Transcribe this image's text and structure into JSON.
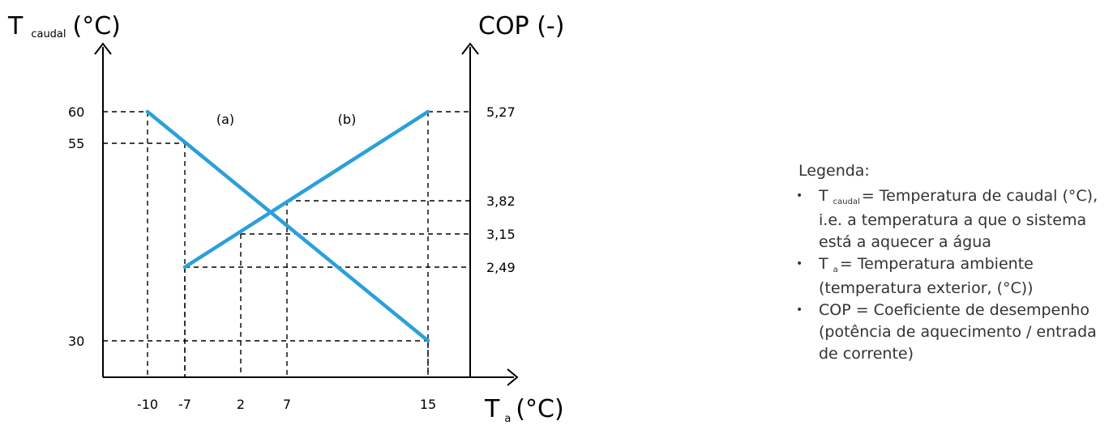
{
  "chart_data": {
    "type": "line",
    "y_left_label": {
      "symbol": "T",
      "subscript": "caudal",
      "unit": "(°C)"
    },
    "y_right_label": "COP (-)",
    "x_label": {
      "symbol": "T",
      "subscript": "a",
      "unit": "(°C)"
    },
    "x_ticks": [
      "-10",
      "-7",
      "2",
      "7",
      "15"
    ],
    "y_left_ticks": [
      "60",
      "55",
      "30"
    ],
    "y_right_ticks": [
      "5,27",
      "3,82",
      "3,15",
      "2,49"
    ],
    "annotations": [
      "(a)",
      "(b)"
    ],
    "series": [
      {
        "key": "a",
        "axis": "left",
        "x": [
          -10,
          15
        ],
        "y": [
          60,
          30
        ]
      },
      {
        "key": "b",
        "axis": "right",
        "x": [
          -7,
          15
        ],
        "y": [
          2.49,
          5.27
        ]
      }
    ],
    "reference_points": {
      "left": [
        {
          "x": -10,
          "y": 60
        },
        {
          "x": -7,
          "y": 55
        },
        {
          "x": 15,
          "y": 30
        }
      ],
      "right": [
        {
          "x": -7,
          "y": 2.49
        },
        {
          "x": 2,
          "y": 3.15
        },
        {
          "x": 7,
          "y": 3.82
        },
        {
          "x": 15,
          "y": 5.27
        }
      ]
    },
    "colors": {
      "line": "#2aa0da",
      "axis": "#000000",
      "guide": "#000000"
    }
  },
  "legend": {
    "title": "Legenda:",
    "items": [
      {
        "symbol": "T",
        "subscript": "caudal",
        "text": "= Temperatura de caudal (°C), i.e. a temperatura a que o sistema está a aquecer a água"
      },
      {
        "symbol": "T",
        "subscript": "a",
        "text": "= Temperatura ambiente (temperatura exterior, (°C))"
      },
      {
        "symbol": "",
        "subscript": "",
        "text": "COP = Coeficiente de desempenho (potência de aquecimento / entrada de corrente)"
      }
    ]
  }
}
